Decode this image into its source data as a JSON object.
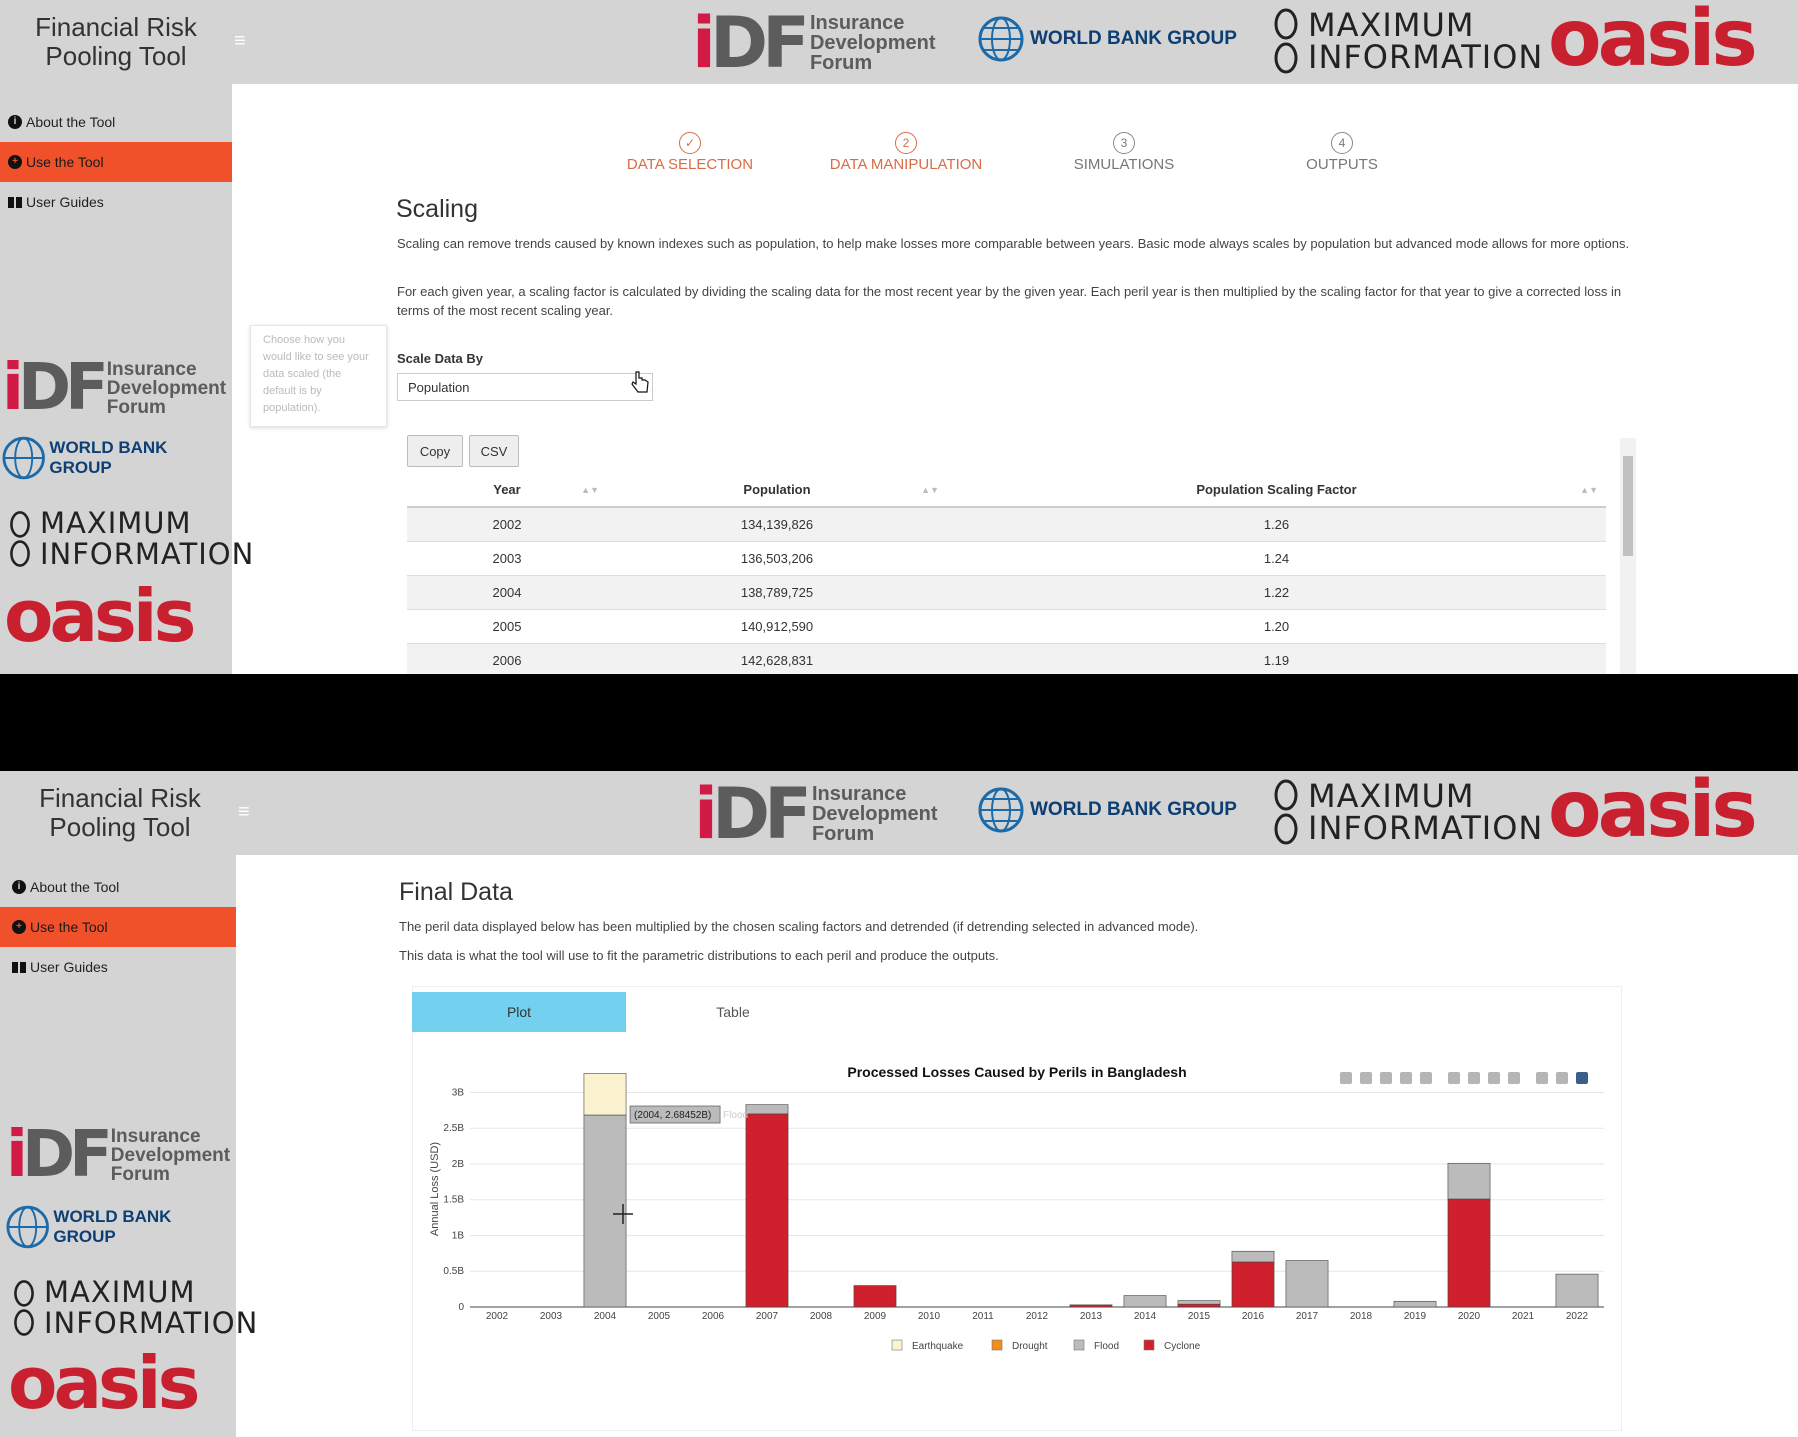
{
  "app": {
    "title": "Financial Risk\nPooling Tool",
    "menu_icon": "hamburger-icon"
  },
  "logos": {
    "idf_mark": [
      "i",
      "DF"
    ],
    "idf_words": "Insurance\nDevelopment\nForum",
    "world_bank": "WORLD BANK GROUP",
    "maximum_information": "MAXIMUM\nINFORMATION",
    "oasis": "oasis"
  },
  "sidebar": {
    "items": [
      {
        "label": "About the Tool",
        "icon": "info-icon"
      },
      {
        "label": "Use the Tool",
        "icon": "crosshair-icon"
      },
      {
        "label": "User Guides",
        "icon": "book-icon"
      }
    ]
  },
  "steps": [
    {
      "num": "✓",
      "label": "DATA SELECTION"
    },
    {
      "num": "2",
      "label": "DATA MANIPULATION"
    },
    {
      "num": "3",
      "label": "SIMULATIONS"
    },
    {
      "num": "4",
      "label": "OUTPUTS"
    }
  ],
  "scaling": {
    "title": "Scaling",
    "p1": "Scaling can remove trends caused by known indexes such as population, to help make losses more comparable between years. Basic mode always scales by population but advanced mode allows for more options.",
    "p2": "For each given year, a scaling factor is calculated by dividing the scaling data for the most recent year by the given year. Each peril year is then multiplied by the scaling factor for that year to give a corrected loss in terms of the most recent scaling year.",
    "tooltip": "Choose how you would like to see your data scaled (the default is by population).",
    "scale_label": "Scale Data By",
    "scale_value": "Population",
    "copy_label": "Copy",
    "csv_label": "CSV",
    "columns": [
      "Year",
      "Population",
      "Population Scaling Factor"
    ],
    "rows": [
      [
        "2002",
        "134,139,826",
        "1.26"
      ],
      [
        "2003",
        "136,503,206",
        "1.24"
      ],
      [
        "2004",
        "138,789,725",
        "1.22"
      ],
      [
        "2005",
        "140,912,590",
        "1.20"
      ],
      [
        "2006",
        "142,628,831",
        "1.19"
      ]
    ]
  },
  "final": {
    "title": "Final Data",
    "p1": "The peril data displayed below has been multiplied by the chosen scaling factors and detrended (if detrending selected in advanced mode).",
    "p2": "This data is what the tool will use to fit the parametric distributions to each peril and produce the outputs.",
    "tabs": [
      "Plot",
      "Table"
    ],
    "hover_label": "(2004, 2.68452B)",
    "hover_series": "Flood",
    "toolbar_icons": [
      "camera-icon",
      "zoom-icon",
      "pan-icon",
      "box-select-icon",
      "lasso-icon",
      "zoom-in-icon",
      "zoom-out-icon",
      "autoscale-icon",
      "home-icon",
      "spike-icon",
      "compare-icon",
      "plotly-logo-icon"
    ]
  },
  "chart_data": {
    "type": "bar",
    "stacked": true,
    "title": "Processed Losses Caused by Perils in Bangladesh",
    "xlabel": "",
    "ylabel": "Annual Loss (USD)",
    "ylim": [
      0,
      3.3
    ],
    "yticks": [
      0,
      0.5,
      1,
      1.5,
      2,
      2.5,
      3
    ],
    "ytick_labels": [
      "0",
      "0.5B",
      "1B",
      "1.5B",
      "2B",
      "2.5B",
      "3B"
    ],
    "legend_position": "bottom",
    "categories": [
      "2002",
      "2003",
      "2004",
      "2005",
      "2006",
      "2007",
      "2008",
      "2009",
      "2010",
      "2011",
      "2012",
      "2013",
      "2014",
      "2015",
      "2016",
      "2017",
      "2018",
      "2019",
      "2020",
      "2021",
      "2022"
    ],
    "series": [
      {
        "name": "Cyclone",
        "color": "#d0202e",
        "values": [
          0,
          0,
          0,
          0,
          0,
          2.7,
          0,
          0.3,
          0,
          0,
          0,
          0.03,
          0,
          0.04,
          0.63,
          0,
          0,
          0,
          1.51,
          0,
          0
        ]
      },
      {
        "name": "Drought",
        "color": "#f28c1c",
        "values": [
          0,
          0,
          0,
          0,
          0,
          0,
          0,
          0,
          0,
          0,
          0,
          0,
          0,
          0,
          0,
          0,
          0,
          0,
          0,
          0,
          0
        ]
      },
      {
        "name": "Flood",
        "color": "#bbbbbb",
        "values": [
          0,
          0,
          2.68452,
          0,
          0,
          0.13,
          0,
          0,
          0,
          0,
          0,
          0,
          0.16,
          0.05,
          0.15,
          0.65,
          0,
          0.08,
          0.5,
          0,
          0.46
        ]
      },
      {
        "name": "Earthquake",
        "color": "#fbf2d0",
        "values": [
          0,
          0,
          0.58,
          0,
          0,
          0,
          0,
          0,
          0,
          0,
          0,
          0,
          0,
          0,
          0,
          0,
          0,
          0,
          0,
          0,
          0
        ]
      }
    ],
    "legend_order": [
      "Earthquake",
      "Drought",
      "Flood",
      "Cyclone"
    ]
  }
}
